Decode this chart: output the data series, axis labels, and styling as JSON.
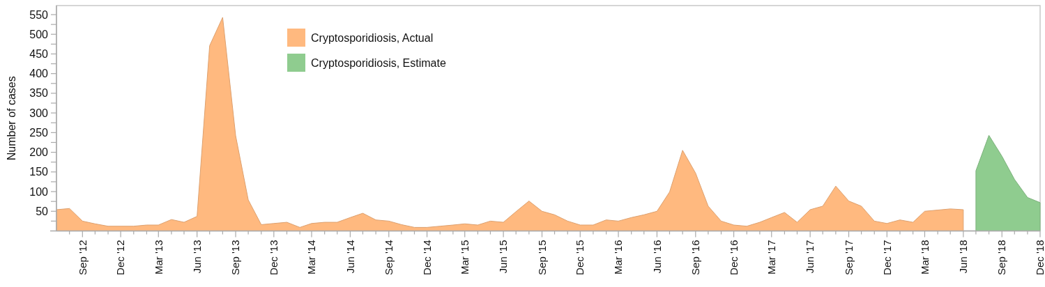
{
  "chart_data": {
    "type": "area",
    "ylabel": "Number of cases",
    "xlim": [
      "2012-07",
      "2018-12"
    ],
    "ylim": [
      0,
      573
    ],
    "yticks": [
      {
        "value": 25,
        "label": null
      },
      50,
      {
        "value": 75,
        "label": null
      },
      100,
      {
        "value": 125,
        "label": null
      },
      150,
      {
        "value": 175,
        "label": null
      },
      200,
      {
        "value": 225,
        "label": null
      },
      250,
      {
        "value": 275,
        "label": null
      },
      300,
      {
        "value": 325,
        "label": null
      },
      350,
      {
        "value": 375,
        "label": null
      },
      400,
      {
        "value": 425,
        "label": null
      },
      450,
      {
        "value": 475,
        "label": null
      },
      500,
      {
        "value": 525,
        "label": null
      },
      550
    ],
    "xticks": [
      {
        "value": "2012-08",
        "label": null
      },
      {
        "value": "2012-09",
        "label": "Sep '12"
      },
      {
        "value": "2012-10",
        "label": null
      },
      {
        "value": "2012-11",
        "label": null
      },
      {
        "value": "2012-12",
        "label": "Dec '12"
      },
      {
        "value": "2013-01",
        "label": null
      },
      {
        "value": "2013-02",
        "label": null
      },
      {
        "value": "2013-03",
        "label": "Mar '13"
      },
      {
        "value": "2013-04",
        "label": null
      },
      {
        "value": "2013-05",
        "label": null
      },
      {
        "value": "2013-06",
        "label": "Jun '13"
      },
      {
        "value": "2013-07",
        "label": null
      },
      {
        "value": "2013-08",
        "label": null
      },
      {
        "value": "2013-09",
        "label": "Sep '13"
      },
      {
        "value": "2013-10",
        "label": null
      },
      {
        "value": "2013-11",
        "label": null
      },
      {
        "value": "2013-12",
        "label": "Dec '13"
      },
      {
        "value": "2014-01",
        "label": null
      },
      {
        "value": "2014-02",
        "label": null
      },
      {
        "value": "2014-03",
        "label": "Mar '14"
      },
      {
        "value": "2014-04",
        "label": null
      },
      {
        "value": "2014-05",
        "label": null
      },
      {
        "value": "2014-06",
        "label": "Jun '14"
      },
      {
        "value": "2014-07",
        "label": null
      },
      {
        "value": "2014-08",
        "label": null
      },
      {
        "value": "2014-09",
        "label": "Sep '14"
      },
      {
        "value": "2014-10",
        "label": null
      },
      {
        "value": "2014-11",
        "label": null
      },
      {
        "value": "2014-12",
        "label": "Dec '14"
      },
      {
        "value": "2015-01",
        "label": null
      },
      {
        "value": "2015-02",
        "label": null
      },
      {
        "value": "2015-03",
        "label": "Mar '15"
      },
      {
        "value": "2015-04",
        "label": null
      },
      {
        "value": "2015-05",
        "label": null
      },
      {
        "value": "2015-06",
        "label": "Jun '15"
      },
      {
        "value": "2015-07",
        "label": null
      },
      {
        "value": "2015-08",
        "label": null
      },
      {
        "value": "2015-09",
        "label": "Sep '15"
      },
      {
        "value": "2015-10",
        "label": null
      },
      {
        "value": "2015-11",
        "label": null
      },
      {
        "value": "2015-12",
        "label": "Dec '15"
      },
      {
        "value": "2016-01",
        "label": null
      },
      {
        "value": "2016-02",
        "label": null
      },
      {
        "value": "2016-03",
        "label": "Mar '16"
      },
      {
        "value": "2016-04",
        "label": null
      },
      {
        "value": "2016-05",
        "label": null
      },
      {
        "value": "2016-06",
        "label": "Jun '16"
      },
      {
        "value": "2016-07",
        "label": null
      },
      {
        "value": "2016-08",
        "label": null
      },
      {
        "value": "2016-09",
        "label": "Sep '16"
      },
      {
        "value": "2016-10",
        "label": null
      },
      {
        "value": "2016-11",
        "label": null
      },
      {
        "value": "2016-12",
        "label": "Dec '16"
      },
      {
        "value": "2017-01",
        "label": null
      },
      {
        "value": "2017-02",
        "label": null
      },
      {
        "value": "2017-03",
        "label": "Mar '17"
      },
      {
        "value": "2017-04",
        "label": null
      },
      {
        "value": "2017-05",
        "label": null
      },
      {
        "value": "2017-06",
        "label": "Jun '17"
      },
      {
        "value": "2017-07",
        "label": null
      },
      {
        "value": "2017-08",
        "label": null
      },
      {
        "value": "2017-09",
        "label": "Sep '17"
      },
      {
        "value": "2017-10",
        "label": null
      },
      {
        "value": "2017-11",
        "label": null
      },
      {
        "value": "2017-12",
        "label": "Dec '17"
      },
      {
        "value": "2018-01",
        "label": null
      },
      {
        "value": "2018-02",
        "label": null
      },
      {
        "value": "2018-03",
        "label": "Mar '18"
      },
      {
        "value": "2018-04",
        "label": null
      },
      {
        "value": "2018-05",
        "label": null
      },
      {
        "value": "2018-06",
        "label": "Jun '18"
      },
      {
        "value": "2018-07",
        "label": null
      },
      {
        "value": "2018-08",
        "label": null
      },
      {
        "value": "2018-09",
        "label": "Sep '18"
      },
      {
        "value": "2018-10",
        "label": null
      },
      {
        "value": "2018-11",
        "label": null
      },
      {
        "value": "2018-12",
        "label": "Dec '18"
      }
    ],
    "legend": "top left",
    "grid": false,
    "series": [
      {
        "name": "Cryptosporidiosis, Actual",
        "color": "#ffb97f",
        "x": [
          "2012-07",
          "2012-08",
          "2012-09",
          "2012-10",
          "2012-11",
          "2012-12",
          "2013-01",
          "2013-02",
          "2013-03",
          "2013-04",
          "2013-05",
          "2013-06",
          "2013-07",
          "2013-08",
          "2013-09",
          "2013-10",
          "2013-11",
          "2013-12",
          "2014-01",
          "2014-02",
          "2014-03",
          "2014-04",
          "2014-05",
          "2014-06",
          "2014-07",
          "2014-08",
          "2014-09",
          "2014-10",
          "2014-11",
          "2014-12",
          "2015-01",
          "2015-02",
          "2015-03",
          "2015-04",
          "2015-05",
          "2015-06",
          "2015-07",
          "2015-08",
          "2015-09",
          "2015-10",
          "2015-11",
          "2015-12",
          "2016-01",
          "2016-02",
          "2016-03",
          "2016-04",
          "2016-05",
          "2016-06",
          "2016-07",
          "2016-08",
          "2016-09",
          "2016-10",
          "2016-11",
          "2016-12",
          "2017-01",
          "2017-02",
          "2017-03",
          "2017-04",
          "2017-05",
          "2017-06",
          "2017-07",
          "2017-08",
          "2017-09",
          "2017-10",
          "2017-11",
          "2017-12",
          "2018-01",
          "2018-02",
          "2018-03",
          "2018-04",
          "2018-05",
          "2018-06"
        ],
        "values": [
          54,
          57,
          25,
          18,
          12,
          12,
          12,
          15,
          15,
          29,
          22,
          37,
          471,
          543,
          242,
          79,
          16,
          19,
          22,
          9,
          19,
          22,
          22,
          34,
          45,
          28,
          25,
          16,
          9,
          9,
          12,
          15,
          18,
          15,
          25,
          22,
          49,
          76,
          50,
          41,
          25,
          15,
          15,
          28,
          25,
          34,
          41,
          50,
          99,
          205,
          147,
          63,
          25,
          15,
          12,
          22,
          34,
          47,
          22,
          54,
          63,
          114,
          76,
          63,
          25,
          19,
          28,
          22,
          50,
          53,
          56,
          54
        ]
      },
      {
        "name": "Cryptosporidiosis, Estimate",
        "color": "#8fcc8f",
        "x": [
          "2018-07",
          "2018-08",
          "2018-09",
          "2018-10",
          "2018-11",
          "2018-12"
        ],
        "values": [
          153,
          243,
          190,
          131,
          85,
          72
        ]
      }
    ]
  }
}
